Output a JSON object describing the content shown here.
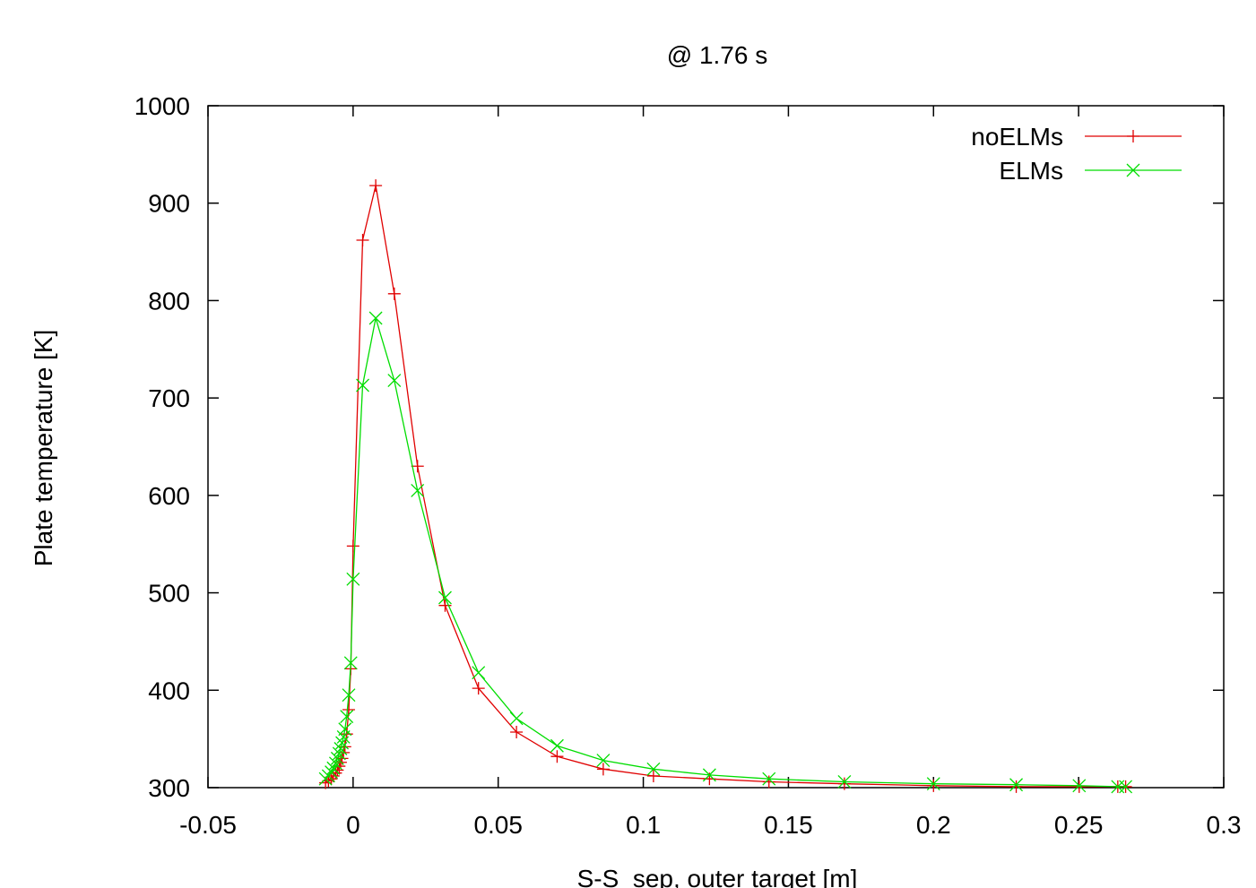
{
  "chart_data": {
    "type": "line",
    "title": "@ 1.76 s",
    "xlabel": "S-S_sep, outer target [m]",
    "ylabel": "Plate temperature [K]",
    "xlim": [
      -0.05,
      0.3
    ],
    "ylim": [
      300,
      1000
    ],
    "xticks": [
      -0.05,
      0,
      0.05,
      0.1,
      0.15,
      0.2,
      0.25,
      0.3
    ],
    "xtick_labels": [
      "-0.05",
      "0",
      "0.05",
      "0.1",
      "0.15",
      "0.2",
      "0.25",
      "0.3"
    ],
    "yticks": [
      300,
      400,
      500,
      600,
      700,
      800,
      900,
      1000
    ],
    "ytick_labels": [
      "300",
      "400",
      "500",
      "600",
      "700",
      "800",
      "900",
      "1000"
    ],
    "grid": false,
    "legend_position": "top-right",
    "series": [
      {
        "name": "noELMs",
        "color": "#e00000",
        "marker": "plus",
        "x": [
          -0.0095,
          -0.0085,
          -0.0075,
          -0.0068,
          -0.006,
          -0.0054,
          -0.0048,
          -0.0043,
          -0.0038,
          -0.0033,
          -0.0028,
          -0.0022,
          -0.0015,
          -0.0008,
          0.0,
          0.0033,
          0.0078,
          0.0142,
          0.0222,
          0.0317,
          0.0432,
          0.0563,
          0.0703,
          0.0862,
          0.1035,
          0.1228,
          0.1433,
          0.1693,
          0.2,
          0.2285,
          0.2502,
          0.2635,
          0.2662
        ],
        "y": [
          305,
          307,
          309,
          312,
          315,
          318,
          322,
          326,
          330,
          336,
          342,
          355,
          380,
          422,
          548,
          862,
          918,
          807,
          630,
          487,
          402,
          357,
          332,
          319,
          312,
          309,
          306,
          304,
          302,
          301,
          301,
          301,
          301
        ]
      },
      {
        "name": "ELMs",
        "color": "#00dd00",
        "marker": "cross",
        "x": [
          -0.0095,
          -0.0085,
          -0.0075,
          -0.0068,
          -0.006,
          -0.0054,
          -0.0048,
          -0.0043,
          -0.0038,
          -0.0033,
          -0.0028,
          -0.0022,
          -0.0015,
          -0.0008,
          0.0,
          0.0033,
          0.0078,
          0.0142,
          0.0222,
          0.0317,
          0.0432,
          0.0563,
          0.0703,
          0.0862,
          0.1035,
          0.1228,
          0.1433,
          0.1693,
          0.2,
          0.2285,
          0.2502,
          0.2635,
          0.2662
        ],
        "y": [
          309,
          312,
          316,
          320,
          325,
          330,
          335,
          340,
          346,
          352,
          360,
          373,
          395,
          428,
          514,
          713,
          782,
          718,
          605,
          495,
          418,
          371,
          343,
          328,
          319,
          313,
          309,
          306,
          304,
          303,
          302,
          301,
          301
        ]
      }
    ]
  }
}
